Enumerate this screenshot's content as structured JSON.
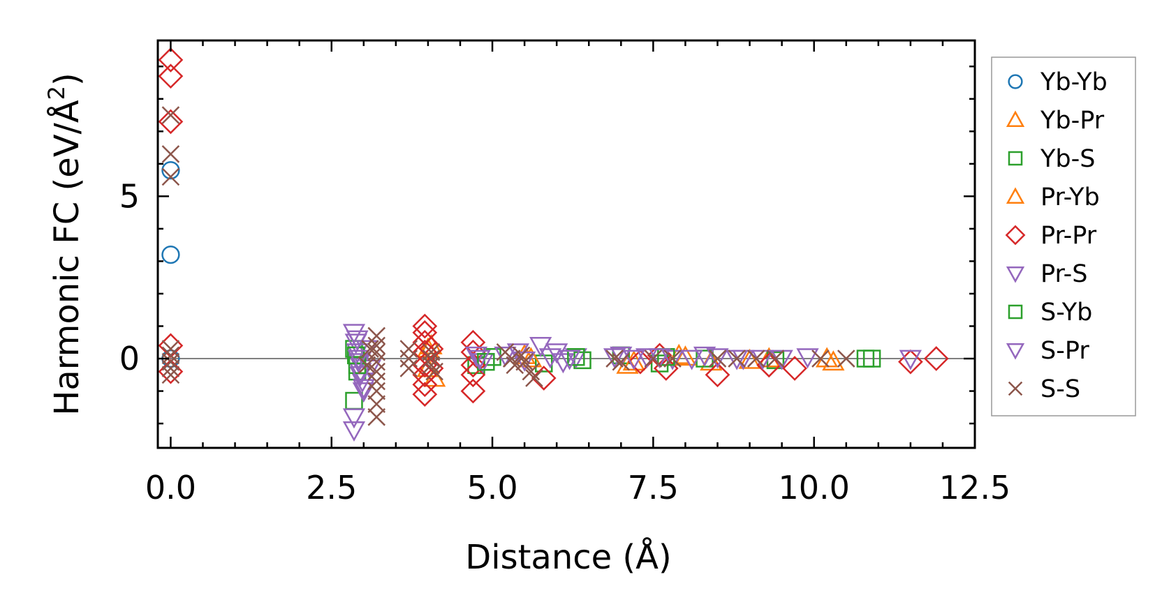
{
  "chart_data": {
    "type": "scatter",
    "title": "",
    "xlabel": "Distance (Å)",
    "ylabel_main": "Harmonic FC (eV/Å",
    "ylabel_sup": "2",
    "ylabel_close": ")",
    "xlim": [
      -0.2,
      12.5
    ],
    "ylim": [
      -2.75,
      9.8
    ],
    "xticks": [
      0.0,
      2.5,
      5.0,
      7.5,
      10.0,
      12.5
    ],
    "xtick_labels": [
      "0.0",
      "2.5",
      "5.0",
      "7.5",
      "10.0",
      "12.5"
    ],
    "yticks": [
      0,
      5
    ],
    "ytick_labels": [
      "0",
      "5"
    ],
    "reference_line_y": 0,
    "legend_position": "outside-right",
    "series": [
      {
        "name": "Yb-Yb",
        "marker": "circle",
        "color": "#1f77b4",
        "points": [
          [
            0,
            5.8
          ],
          [
            0,
            3.2
          ],
          [
            0,
            0
          ]
        ]
      },
      {
        "name": "Yb-Pr",
        "marker": "triangle-up",
        "color": "#ff7f0e",
        "points": [
          [
            4.0,
            0.3
          ],
          [
            4.0,
            -0.3
          ],
          [
            5.5,
            0.1
          ],
          [
            7.1,
            -0.2
          ],
          [
            7.9,
            0.1
          ],
          [
            8.4,
            -0.1
          ],
          [
            9.3,
            0
          ],
          [
            10.3,
            -0.1
          ]
        ]
      },
      {
        "name": "Yb-S",
        "marker": "square",
        "color": "#2ca02c",
        "points": [
          [
            2.85,
            0.3
          ],
          [
            2.85,
            -1.3
          ],
          [
            2.9,
            -0.4
          ],
          [
            4.75,
            -0.2
          ],
          [
            5.0,
            0.05
          ],
          [
            5.8,
            -0.15
          ],
          [
            6.4,
            -0.05
          ],
          [
            7.0,
            0.1
          ],
          [
            7.6,
            -0.15
          ],
          [
            8.3,
            0
          ],
          [
            9.4,
            -0.05
          ],
          [
            10.8,
            0
          ]
        ]
      },
      {
        "name": "Pr-Yb",
        "marker": "triangle-up",
        "color": "#ff7f0e",
        "points": [
          [
            4.05,
            0.4
          ],
          [
            4.1,
            -0.6
          ],
          [
            5.6,
            0
          ],
          [
            7.2,
            -0.1
          ],
          [
            8.0,
            0.05
          ],
          [
            9.0,
            -0.05
          ],
          [
            10.2,
            0
          ]
        ]
      },
      {
        "name": "Pr-Pr",
        "marker": "diamond",
        "color": "#d62728",
        "points": [
          [
            0,
            9.2
          ],
          [
            0,
            8.7
          ],
          [
            0,
            7.3
          ],
          [
            0,
            0.4
          ],
          [
            0,
            -0.4
          ],
          [
            3.95,
            1.0
          ],
          [
            3.95,
            0.8
          ],
          [
            3.95,
            0.5
          ],
          [
            3.95,
            0.2
          ],
          [
            3.95,
            -0.2
          ],
          [
            3.95,
            -0.5
          ],
          [
            3.95,
            -0.8
          ],
          [
            3.95,
            -1.1
          ],
          [
            4.05,
            0.3
          ],
          [
            4.05,
            -0.3
          ],
          [
            4.7,
            0.5
          ],
          [
            4.7,
            0.2
          ],
          [
            4.7,
            -0.2
          ],
          [
            4.7,
            -0.5
          ],
          [
            4.7,
            -1.0
          ],
          [
            5.8,
            -0.6
          ],
          [
            7.3,
            -0.1
          ],
          [
            7.6,
            0.1
          ],
          [
            7.7,
            -0.3
          ],
          [
            8.5,
            -0.5
          ],
          [
            9.3,
            -0.2
          ],
          [
            9.7,
            -0.3
          ],
          [
            11.5,
            -0.1
          ],
          [
            11.9,
            0
          ]
        ]
      },
      {
        "name": "Pr-S",
        "marker": "triangle-down",
        "color": "#9467bd",
        "points": [
          [
            2.85,
            0.8
          ],
          [
            2.88,
            0.5
          ],
          [
            2.9,
            0.2
          ],
          [
            2.92,
            -0.1
          ],
          [
            2.95,
            -0.4
          ],
          [
            2.98,
            -0.7
          ],
          [
            3.0,
            -1.0
          ],
          [
            3.05,
            0.3
          ],
          [
            3.1,
            -0.3
          ],
          [
            2.85,
            -1.8
          ],
          [
            2.85,
            -2.2
          ],
          [
            4.75,
            0.1
          ],
          [
            4.85,
            -0.1
          ],
          [
            5.4,
            0.2
          ],
          [
            5.75,
            0.4
          ],
          [
            5.9,
            0.05
          ],
          [
            6.1,
            -0.1
          ],
          [
            6.3,
            0.05
          ],
          [
            7.0,
            0.1
          ],
          [
            7.4,
            0.05
          ],
          [
            7.8,
            0
          ],
          [
            8.3,
            0.1
          ],
          [
            8.8,
            0
          ],
          [
            9.2,
            0
          ],
          [
            9.9,
            0.05
          ],
          [
            11.5,
            0
          ]
        ]
      },
      {
        "name": "S-Yb",
        "marker": "square",
        "color": "#2ca02c",
        "points": [
          [
            2.88,
            0.1
          ],
          [
            2.9,
            -0.2
          ],
          [
            4.9,
            -0.1
          ],
          [
            6.3,
            0.05
          ],
          [
            7.7,
            0.05
          ],
          [
            10.9,
            0
          ]
        ]
      },
      {
        "name": "S-Pr",
        "marker": "triangle-down",
        "color": "#9467bd",
        "points": [
          [
            2.9,
            0.6
          ],
          [
            2.92,
            0.0
          ],
          [
            2.95,
            -0.5
          ],
          [
            3.0,
            -0.9
          ],
          [
            4.8,
            0.0
          ],
          [
            5.2,
            0.1
          ],
          [
            5.5,
            -0.05
          ],
          [
            6.0,
            0.2
          ],
          [
            6.2,
            0.0
          ],
          [
            6.9,
            0.05
          ],
          [
            7.2,
            0
          ],
          [
            7.6,
            0.05
          ],
          [
            8.1,
            0
          ],
          [
            8.5,
            0.05
          ],
          [
            8.9,
            0
          ],
          [
            9.5,
            0
          ]
        ]
      },
      {
        "name": "S-S",
        "marker": "x",
        "color": "#8c564b",
        "points": [
          [
            0,
            7.5
          ],
          [
            0,
            6.3
          ],
          [
            0,
            5.6
          ],
          [
            0,
            0.3
          ],
          [
            0,
            0.1
          ],
          [
            0,
            -0.1
          ],
          [
            0,
            -0.3
          ],
          [
            0,
            -0.5
          ],
          [
            3.2,
            0.7
          ],
          [
            3.2,
            0.4
          ],
          [
            3.2,
            0.2
          ],
          [
            3.2,
            -0.1
          ],
          [
            3.2,
            -0.4
          ],
          [
            3.2,
            -0.7
          ],
          [
            3.2,
            -1.0
          ],
          [
            3.2,
            -1.4
          ],
          [
            3.2,
            -1.8
          ],
          [
            3.1,
            0.3
          ],
          [
            3.05,
            -0.2
          ],
          [
            3.7,
            0.3
          ],
          [
            3.7,
            0
          ],
          [
            3.7,
            -0.3
          ],
          [
            4.05,
            0.2
          ],
          [
            4.05,
            0
          ],
          [
            4.05,
            -0.2
          ],
          [
            4.1,
            -0.4
          ],
          [
            5.2,
            0.2
          ],
          [
            5.3,
            0
          ],
          [
            5.35,
            -0.2
          ],
          [
            5.45,
            0.1
          ],
          [
            5.5,
            -0.1
          ],
          [
            5.6,
            -0.4
          ],
          [
            5.65,
            -0.6
          ],
          [
            6.9,
            0
          ],
          [
            7.0,
            -0.1
          ],
          [
            7.5,
            0
          ],
          [
            7.8,
            0
          ],
          [
            8.5,
            0
          ],
          [
            8.8,
            0
          ],
          [
            9.1,
            0
          ],
          [
            9.4,
            0
          ],
          [
            10.1,
            0
          ],
          [
            10.5,
            0
          ]
        ]
      }
    ]
  }
}
